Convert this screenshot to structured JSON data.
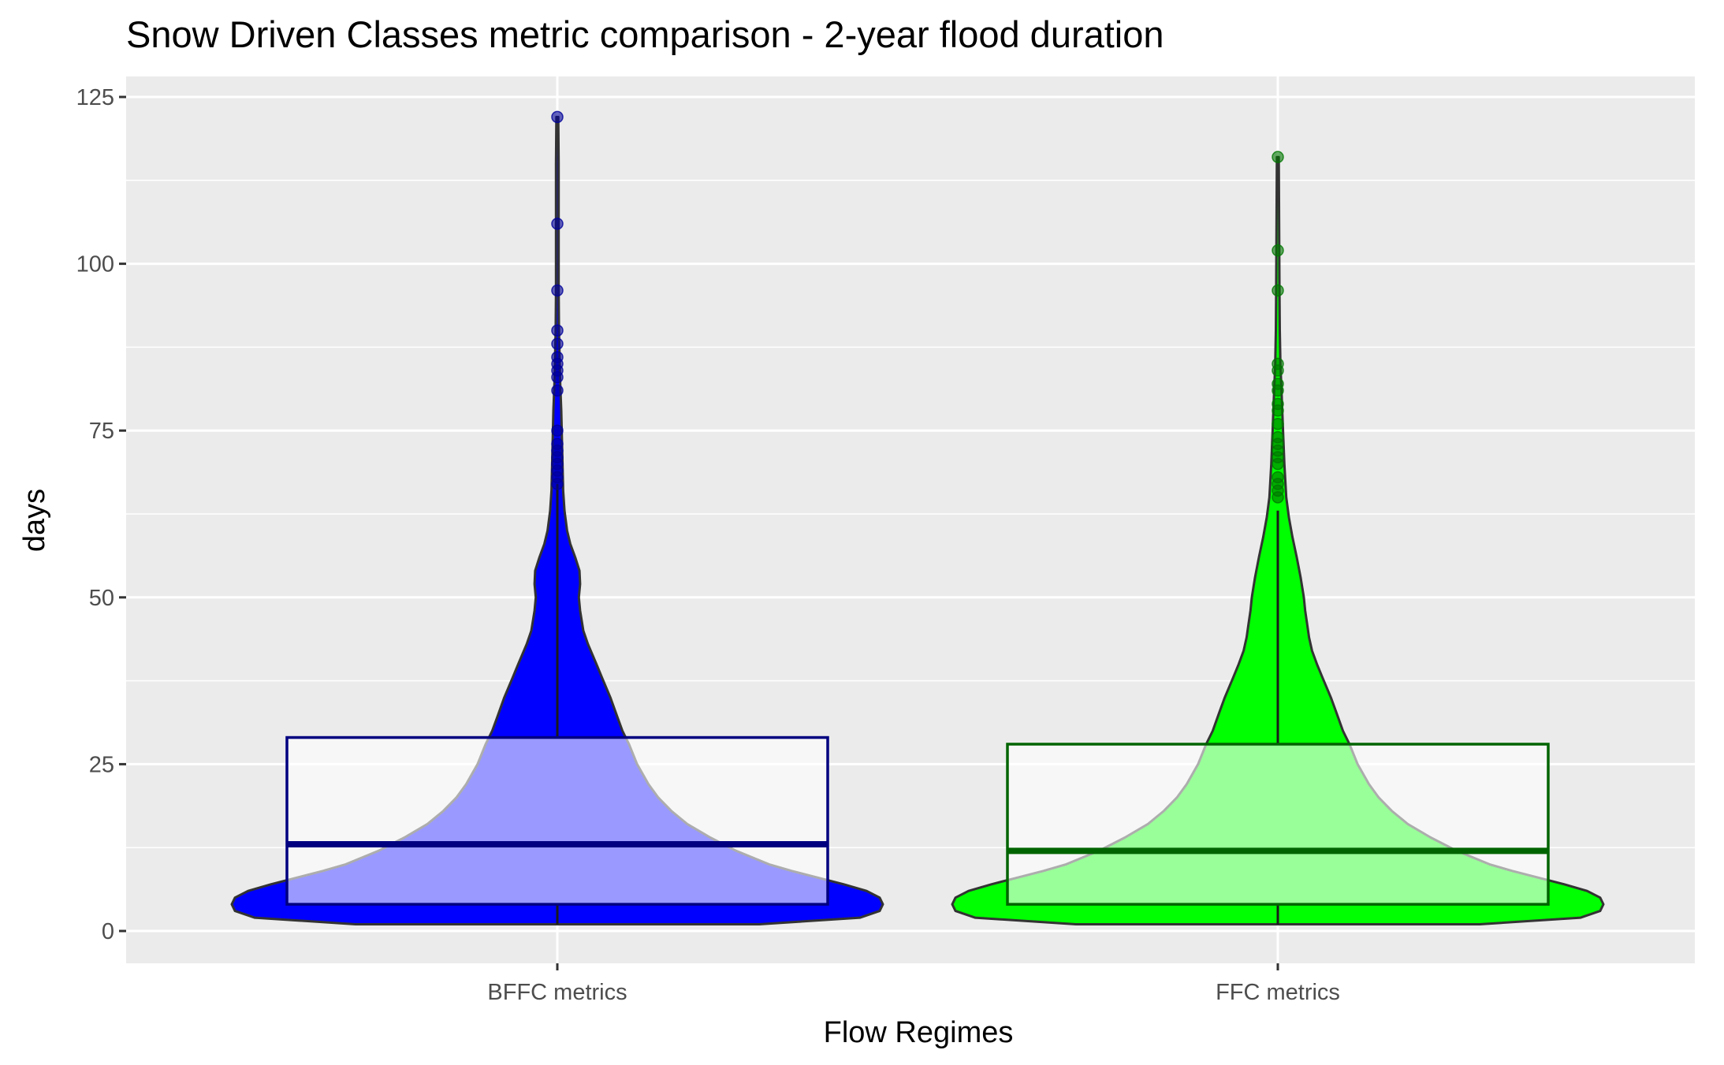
{
  "chart_data": {
    "type": "violin",
    "title": "Snow Driven Classes metric comparison - 2-year flood duration",
    "xlabel": "Flow Regimes",
    "ylabel": "days",
    "categories": [
      "BFFC metrics",
      "FFC metrics"
    ],
    "y_ticks": [
      0,
      25,
      50,
      75,
      100,
      125
    ],
    "y_tick_labels": [
      "0",
      "25",
      "50",
      "75",
      "100",
      "125"
    ],
    "ylim": [
      -5,
      128.5
    ],
    "grid": true,
    "legend": "none",
    "background": "#ebebeb",
    "series": [
      {
        "category": "BFFC metrics",
        "fill": "#0000ff",
        "box_color": "#000080",
        "min": 1,
        "max": 122,
        "box": {
          "q1": 4,
          "median": 13,
          "q3": 29,
          "whisker_low": 1,
          "whisker_high": 67
        },
        "density_profile": [
          [
            1,
            0.62
          ],
          [
            2,
            0.93
          ],
          [
            3,
            0.99
          ],
          [
            4,
            1.0
          ],
          [
            5,
            0.99
          ],
          [
            6,
            0.95
          ],
          [
            7,
            0.88
          ],
          [
            8,
            0.8
          ],
          [
            9,
            0.72
          ],
          [
            10,
            0.65
          ],
          [
            12,
            0.55
          ],
          [
            14,
            0.47
          ],
          [
            16,
            0.4
          ],
          [
            18,
            0.35
          ],
          [
            20,
            0.31
          ],
          [
            22,
            0.28
          ],
          [
            25,
            0.245
          ],
          [
            28,
            0.22
          ],
          [
            30,
            0.2
          ],
          [
            32,
            0.185
          ],
          [
            35,
            0.163
          ],
          [
            38,
            0.137
          ],
          [
            40,
            0.12
          ],
          [
            43,
            0.094
          ],
          [
            45,
            0.08
          ],
          [
            48,
            0.07
          ],
          [
            50,
            0.066
          ],
          [
            52,
            0.07
          ],
          [
            54,
            0.068
          ],
          [
            56,
            0.055
          ],
          [
            58,
            0.04
          ],
          [
            60,
            0.03
          ],
          [
            63,
            0.022
          ],
          [
            66,
            0.018
          ],
          [
            70,
            0.016
          ],
          [
            74,
            0.014
          ],
          [
            78,
            0.012
          ],
          [
            82,
            0.009
          ],
          [
            86,
            0.007
          ],
          [
            90,
            0.005
          ],
          [
            96,
            0.004
          ],
          [
            105,
            0.004
          ],
          [
            115,
            0.004
          ],
          [
            122,
            0.003
          ]
        ],
        "points": [
          122,
          106,
          96,
          90,
          88,
          86,
          85,
          84,
          83,
          81,
          75,
          73,
          72,
          71,
          70,
          69,
          68,
          67
        ]
      },
      {
        "category": "FFC metrics",
        "fill": "#00ff00",
        "box_color": "#006400",
        "min": 1,
        "max": 116,
        "box": {
          "q1": 4,
          "median": 12,
          "q3": 28,
          "whisker_low": 1,
          "whisker_high": 63
        },
        "density_profile": [
          [
            1,
            0.62
          ],
          [
            2,
            0.93
          ],
          [
            3,
            0.99
          ],
          [
            4,
            1.0
          ],
          [
            5,
            0.99
          ],
          [
            6,
            0.95
          ],
          [
            7,
            0.88
          ],
          [
            8,
            0.8
          ],
          [
            9,
            0.72
          ],
          [
            10,
            0.65
          ],
          [
            12,
            0.55
          ],
          [
            14,
            0.47
          ],
          [
            16,
            0.4
          ],
          [
            18,
            0.35
          ],
          [
            20,
            0.31
          ],
          [
            22,
            0.28
          ],
          [
            25,
            0.245
          ],
          [
            28,
            0.22
          ],
          [
            30,
            0.2
          ],
          [
            33,
            0.178
          ],
          [
            35,
            0.163
          ],
          [
            38,
            0.137
          ],
          [
            40,
            0.12
          ],
          [
            42,
            0.105
          ],
          [
            44,
            0.096
          ],
          [
            46,
            0.09
          ],
          [
            48,
            0.084
          ],
          [
            50,
            0.08
          ],
          [
            53,
            0.07
          ],
          [
            56,
            0.058
          ],
          [
            59,
            0.045
          ],
          [
            62,
            0.034
          ],
          [
            65,
            0.026
          ],
          [
            70,
            0.02
          ],
          [
            75,
            0.016
          ],
          [
            80,
            0.012
          ],
          [
            85,
            0.008
          ],
          [
            90,
            0.006
          ],
          [
            96,
            0.005
          ],
          [
            105,
            0.004
          ],
          [
            116,
            0.003
          ]
        ],
        "points": [
          116,
          102,
          96,
          85,
          84,
          82,
          81,
          79,
          78,
          76,
          74,
          73,
          72,
          71,
          70,
          68,
          67,
          66,
          65
        ]
      }
    ]
  }
}
